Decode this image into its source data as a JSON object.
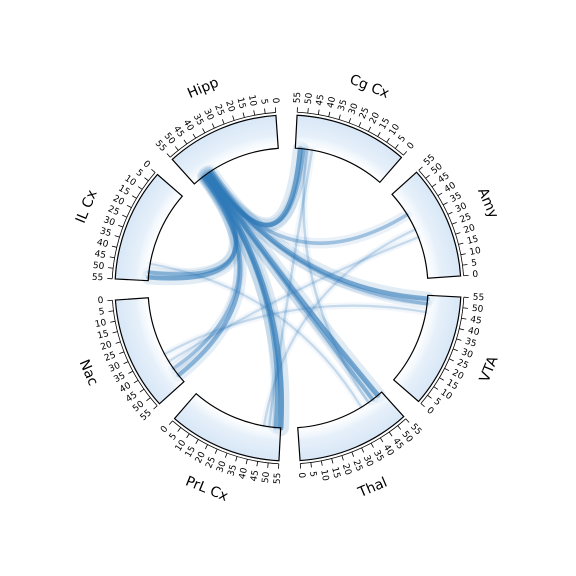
{
  "chart_data": {
    "type": "chord",
    "title": "",
    "segments": [
      {
        "name": "Hipp",
        "range": [
          0,
          55
        ],
        "ticks": [
          0,
          5,
          10,
          15,
          20,
          25,
          30,
          35,
          40,
          45,
          50,
          55
        ]
      },
      {
        "name": "Cg Cx",
        "range": [
          0,
          55
        ],
        "ticks": [
          0,
          5,
          10,
          15,
          20,
          25,
          30,
          35,
          40,
          45,
          50,
          55
        ]
      },
      {
        "name": "Amy",
        "range": [
          0,
          55
        ],
        "ticks": [
          0,
          5,
          10,
          15,
          20,
          25,
          30,
          35,
          40,
          45,
          50,
          55
        ]
      },
      {
        "name": "VTA",
        "range": [
          0,
          55
        ],
        "ticks": [
          0,
          5,
          10,
          15,
          20,
          25,
          30,
          35,
          40,
          45,
          50,
          55
        ]
      },
      {
        "name": "Thal",
        "range": [
          0,
          55
        ],
        "ticks": [
          0,
          5,
          10,
          15,
          20,
          25,
          30,
          35,
          40,
          45,
          50,
          55
        ]
      },
      {
        "name": "PrL Cx",
        "range": [
          0,
          55
        ],
        "ticks": [
          0,
          5,
          10,
          15,
          20,
          25,
          30,
          35,
          40,
          45,
          50,
          55
        ]
      },
      {
        "name": "Nac",
        "range": [
          0,
          55
        ],
        "ticks": [
          0,
          5,
          10,
          15,
          20,
          25,
          30,
          35,
          40,
          45,
          50,
          55
        ]
      },
      {
        "name": "IL Cx",
        "range": [
          0,
          55
        ],
        "ticks": [
          0,
          5,
          10,
          15,
          20,
          25,
          30,
          35,
          40,
          45,
          50,
          55
        ]
      }
    ],
    "links": [
      {
        "source": "Hipp",
        "source_pos": 45,
        "target": "Cg Cx",
        "target_pos": 52,
        "strength": 0.9
      },
      {
        "source": "Hipp",
        "source_pos": 44,
        "target": "Cg Cx",
        "target_pos": 50,
        "strength": 0.6
      },
      {
        "source": "Hipp",
        "source_pos": 47,
        "target": "IL Cx",
        "target_pos": 53,
        "strength": 0.8
      },
      {
        "source": "Hipp",
        "source_pos": 46,
        "target": "IL Cx",
        "target_pos": 50,
        "strength": 0.6
      },
      {
        "source": "Hipp",
        "source_pos": 45,
        "target": "Amy",
        "target_pos": 40,
        "strength": 0.5
      },
      {
        "source": "Hipp",
        "source_pos": 43,
        "target": "VTA",
        "target_pos": 53,
        "strength": 0.8
      },
      {
        "source": "Hipp",
        "source_pos": 44,
        "target": "VTA",
        "target_pos": 50,
        "strength": 0.5
      },
      {
        "source": "Hipp",
        "source_pos": 45,
        "target": "Thal",
        "target_pos": 52,
        "strength": 0.9
      },
      {
        "source": "Hipp",
        "source_pos": 46,
        "target": "Thal",
        "target_pos": 48,
        "strength": 0.6
      },
      {
        "source": "Hipp",
        "source_pos": 46,
        "target": "PrL Cx",
        "target_pos": 55,
        "strength": 1.0
      },
      {
        "source": "Hipp",
        "source_pos": 47,
        "target": "PrL Cx",
        "target_pos": 52,
        "strength": 0.7
      },
      {
        "source": "Hipp",
        "source_pos": 48,
        "target": "Nac",
        "target_pos": 50,
        "strength": 0.7
      },
      {
        "source": "Hipp",
        "source_pos": 49,
        "target": "Nac",
        "target_pos": 45,
        "strength": 0.5
      },
      {
        "source": "Cg Cx",
        "source_pos": 48,
        "target": "Thal",
        "target_pos": 45,
        "strength": 0.25
      },
      {
        "source": "Cg Cx",
        "source_pos": 45,
        "target": "PrL Cx",
        "target_pos": 48,
        "strength": 0.25
      },
      {
        "source": "Amy",
        "source_pos": 30,
        "target": "PrL Cx",
        "target_pos": 45,
        "strength": 0.2
      },
      {
        "source": "Amy",
        "source_pos": 25,
        "target": "Nac",
        "target_pos": 40,
        "strength": 0.2
      },
      {
        "source": "VTA",
        "source_pos": 45,
        "target": "Nac",
        "target_pos": 35,
        "strength": 0.2
      },
      {
        "source": "IL Cx",
        "source_pos": 45,
        "target": "Thal",
        "target_pos": 40,
        "strength": 0.2
      }
    ],
    "colors": {
      "link": "#2f7ab8",
      "box": "#000000"
    }
  }
}
